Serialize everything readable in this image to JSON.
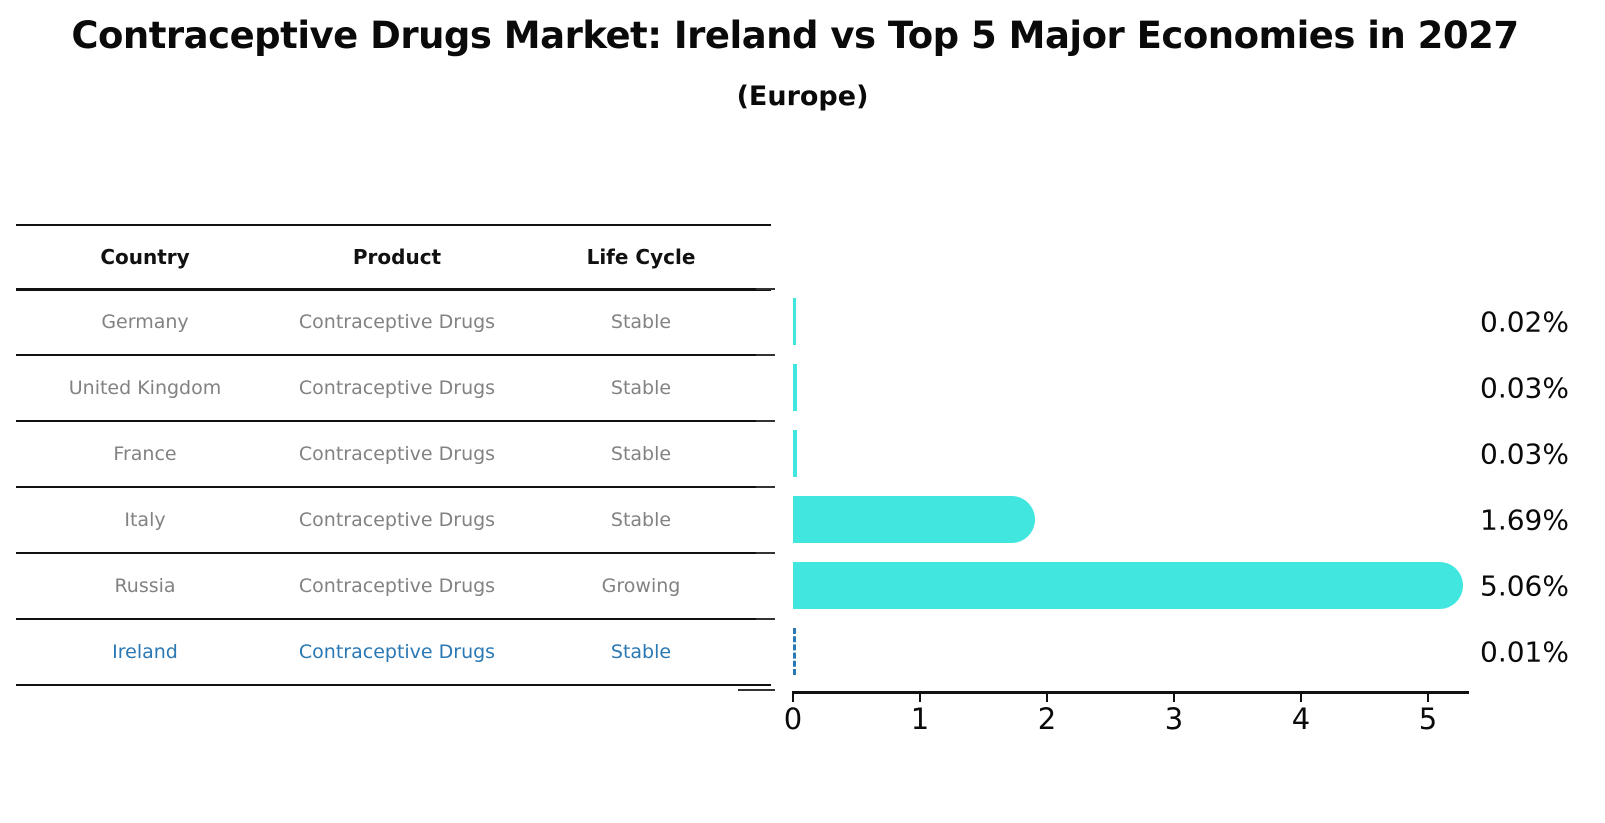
{
  "title": "Contraceptive Drugs Market: Ireland vs Top 5 Major Economies in 2027",
  "subtitle": "(Europe)",
  "table": {
    "headers": [
      "Country",
      "Product",
      "Life Cycle"
    ],
    "rows": [
      {
        "country": "Germany",
        "product": "Contraceptive Drugs",
        "life_cycle": "Stable",
        "highlighted": false
      },
      {
        "country": "United Kingdom",
        "product": "Contraceptive Drugs",
        "life_cycle": "Stable",
        "highlighted": false
      },
      {
        "country": "France",
        "product": "Contraceptive Drugs",
        "life_cycle": "Stable",
        "highlighted": false
      },
      {
        "country": "Italy",
        "product": "Contraceptive Drugs",
        "life_cycle": "Stable",
        "highlighted": false
      },
      {
        "country": "Russia",
        "product": "Contraceptive Drugs",
        "life_cycle": "Growing",
        "highlighted": false
      },
      {
        "country": "Ireland",
        "product": "Contraceptive Drugs",
        "life_cycle": "Stable",
        "highlighted": true
      }
    ]
  },
  "chart_data": {
    "type": "bar",
    "orientation": "horizontal",
    "categories": [
      "Germany",
      "United Kingdom",
      "France",
      "Italy",
      "Russia",
      "Ireland"
    ],
    "values": [
      0.02,
      0.03,
      0.03,
      1.69,
      5.06,
      0.01
    ],
    "value_labels": [
      "0.02%",
      "0.03%",
      "0.03%",
      "1.69%",
      "5.06%",
      "0.01%"
    ],
    "x_ticks": [
      "0",
      "1",
      "2",
      "3",
      "4",
      "5"
    ],
    "xlim": [
      0,
      5.32
    ],
    "grid": "off",
    "bar_color": "#41E7DF",
    "highlight_index": 5,
    "highlight_style": "dashed-outline",
    "highlight_color": "#2A78B4"
  },
  "colors": {
    "background": "#FFFFFF",
    "title_text": "#0A0A0A",
    "table_line": "#111111",
    "table_text": "#828282",
    "highlight_text": "#2A78B4",
    "bar": "#41E7DF"
  }
}
